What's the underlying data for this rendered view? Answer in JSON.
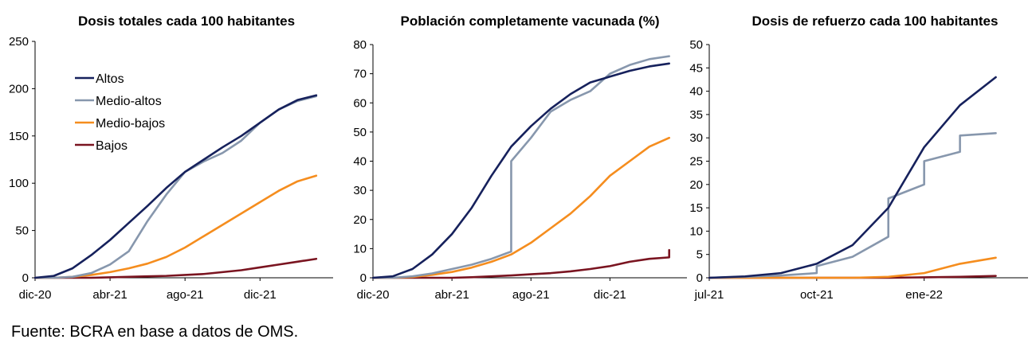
{
  "source": "Fuente: BCRA en base a datos de OMS.",
  "colors": {
    "Altos": "#16215c",
    "Medio-altos": "#8797ad",
    "Medio-bajos": "#f58d1e",
    "Bajos": "#7a1420"
  },
  "legend": [
    "Altos",
    "Medio-altos",
    "Medio-bajos",
    "Bajos"
  ],
  "chart_data": [
    {
      "type": "line",
      "title": "Dosis totales cada 100 habitantes",
      "x_ticks": [
        "dic-20",
        "abr-21",
        "ago-21",
        "dic-21"
      ],
      "x_domain": [
        "dic-20",
        "mar-22"
      ],
      "ylim": [
        0,
        250
      ],
      "y_ticks": [
        0,
        50,
        100,
        150,
        200,
        250
      ],
      "legend_position": "top-left",
      "series": [
        {
          "name": "Altos",
          "x": [
            "dic-20",
            "ene-21",
            "feb-21",
            "mar-21",
            "abr-21",
            "may-21",
            "jun-21",
            "jul-21",
            "ago-21",
            "sep-21",
            "oct-21",
            "nov-21",
            "dic-21",
            "ene-22",
            "feb-22",
            "mar-22"
          ],
          "values": [
            0,
            2,
            10,
            24,
            40,
            58,
            76,
            95,
            112,
            125,
            138,
            150,
            164,
            178,
            188,
            193
          ]
        },
        {
          "name": "Medio-altos",
          "x": [
            "dic-20",
            "ene-21",
            "feb-21",
            "mar-21",
            "abr-21",
            "may-21",
            "jun-21",
            "jul-21",
            "ago-21",
            "sep-21",
            "oct-21",
            "nov-21",
            "dic-21",
            "ene-22",
            "feb-22",
            "mar-22"
          ],
          "values": [
            0,
            0,
            1,
            5,
            14,
            28,
            60,
            88,
            112,
            123,
            132,
            145,
            164,
            178,
            187,
            192
          ]
        },
        {
          "name": "Medio-bajos",
          "x": [
            "dic-20",
            "ene-21",
            "feb-21",
            "mar-21",
            "abr-21",
            "may-21",
            "jun-21",
            "jul-21",
            "ago-21",
            "sep-21",
            "oct-21",
            "nov-21",
            "dic-21",
            "ene-22",
            "feb-22",
            "mar-22"
          ],
          "values": [
            0,
            0,
            1,
            3,
            6,
            10,
            15,
            22,
            32,
            44,
            56,
            68,
            80,
            92,
            102,
            108
          ]
        },
        {
          "name": "Bajos",
          "x": [
            "dic-20",
            "ene-21",
            "feb-21",
            "mar-21",
            "abr-21",
            "may-21",
            "jun-21",
            "jul-21",
            "ago-21",
            "sep-21",
            "oct-21",
            "nov-21",
            "dic-21",
            "ene-22",
            "feb-22",
            "mar-22"
          ],
          "values": [
            0,
            0,
            0,
            0,
            0.5,
            1,
            1.5,
            2,
            3,
            4,
            6,
            8,
            11,
            14,
            17,
            20
          ]
        }
      ]
    },
    {
      "type": "line",
      "title": "Población completamente vacunada (%)",
      "x_ticks": [
        "dic-20",
        "abr-21",
        "ago-21",
        "dic-21"
      ],
      "x_domain": [
        "dic-20",
        "mar-22"
      ],
      "ylim": [
        0,
        80
      ],
      "y_ticks": [
        0,
        10,
        20,
        30,
        40,
        50,
        60,
        70,
        80
      ],
      "series": [
        {
          "name": "Altos",
          "x": [
            "dic-20",
            "ene-21",
            "feb-21",
            "mar-21",
            "abr-21",
            "may-21",
            "jun-21",
            "jul-21",
            "ago-21",
            "sep-21",
            "oct-21",
            "nov-21",
            "dic-21",
            "ene-22",
            "feb-22",
            "mar-22"
          ],
          "values": [
            0,
            0.5,
            3,
            8,
            15,
            24,
            35,
            45,
            52,
            58,
            63,
            67,
            69,
            71,
            72.5,
            73.5
          ]
        },
        {
          "name": "Medio-altos",
          "x": [
            "dic-20",
            "ene-21",
            "feb-21",
            "mar-21",
            "abr-21",
            "may-21",
            "jun-21",
            "jul-21",
            "jul-21",
            "ago-21",
            "sep-21",
            "oct-21",
            "nov-21",
            "dic-21",
            "ene-22",
            "feb-22",
            "mar-22"
          ],
          "values": [
            0,
            0,
            0.5,
            1.5,
            3,
            4.5,
            6.5,
            9,
            40,
            48,
            57,
            61,
            64,
            70,
            73,
            75,
            76
          ]
        },
        {
          "name": "Medio-bajos",
          "x": [
            "dic-20",
            "ene-21",
            "feb-21",
            "mar-21",
            "abr-21",
            "may-21",
            "jun-21",
            "jul-21",
            "ago-21",
            "sep-21",
            "oct-21",
            "nov-21",
            "dic-21",
            "ene-22",
            "feb-22",
            "mar-22"
          ],
          "values": [
            0,
            0,
            0.3,
            1,
            2,
            3.5,
            5.5,
            8,
            12,
            17,
            22,
            28,
            35,
            40,
            45,
            48
          ]
        },
        {
          "name": "Bajos",
          "x": [
            "dic-20",
            "ene-21",
            "feb-21",
            "mar-21",
            "abr-21",
            "may-21",
            "jun-21",
            "jul-21",
            "ago-21",
            "sep-21",
            "oct-21",
            "nov-21",
            "dic-21",
            "ene-22",
            "feb-22",
            "mar-22",
            "mar-22"
          ],
          "values": [
            0,
            0,
            0,
            0,
            0,
            0.2,
            0.5,
            0.8,
            1.2,
            1.6,
            2.2,
            3,
            4,
            5.5,
            6.5,
            7,
            9.5
          ]
        }
      ]
    },
    {
      "type": "line",
      "title": "Dosis de refuerzo cada 100 habitantes",
      "x_ticks": [
        "jul-21",
        "oct-21",
        "ene-22"
      ],
      "x_domain": [
        "jul-21",
        "mar-22"
      ],
      "ylim": [
        0,
        50
      ],
      "y_ticks": [
        0,
        5,
        10,
        15,
        20,
        25,
        30,
        35,
        40,
        45,
        50
      ],
      "series": [
        {
          "name": "Altos",
          "x": [
            "jul-21",
            "ago-21",
            "sep-21",
            "oct-21",
            "nov-21",
            "dic-21",
            "ene-22",
            "feb-22",
            "mar-22"
          ],
          "values": [
            0,
            0.3,
            1,
            3,
            7,
            15,
            28,
            37,
            43
          ]
        },
        {
          "name": "Medio-altos",
          "x": [
            "jul-21",
            "ago-21",
            "sep-21",
            "oct-21",
            "oct-21",
            "nov-21",
            "dic-21",
            "dic-21",
            "ene-22",
            "ene-22",
            "feb-22",
            "feb-22",
            "mar-22"
          ],
          "values": [
            0,
            0.2,
            0.5,
            1,
            2.5,
            4.5,
            8.8,
            17,
            20,
            25,
            27,
            30.5,
            31
          ]
        },
        {
          "name": "Medio-bajos",
          "x": [
            "jul-21",
            "ago-21",
            "sep-21",
            "oct-21",
            "nov-21",
            "dic-21",
            "ene-22",
            "feb-22",
            "mar-22"
          ],
          "values": [
            0,
            0,
            0,
            0,
            0,
            0.2,
            1,
            3,
            4.3
          ]
        },
        {
          "name": "Bajos",
          "x": [
            "jul-21",
            "ago-21",
            "sep-21",
            "oct-21",
            "nov-21",
            "dic-21",
            "ene-22",
            "feb-22",
            "mar-22"
          ],
          "values": [
            0,
            0,
            0,
            0,
            0,
            0,
            0.1,
            0.2,
            0.4
          ]
        }
      ]
    }
  ]
}
